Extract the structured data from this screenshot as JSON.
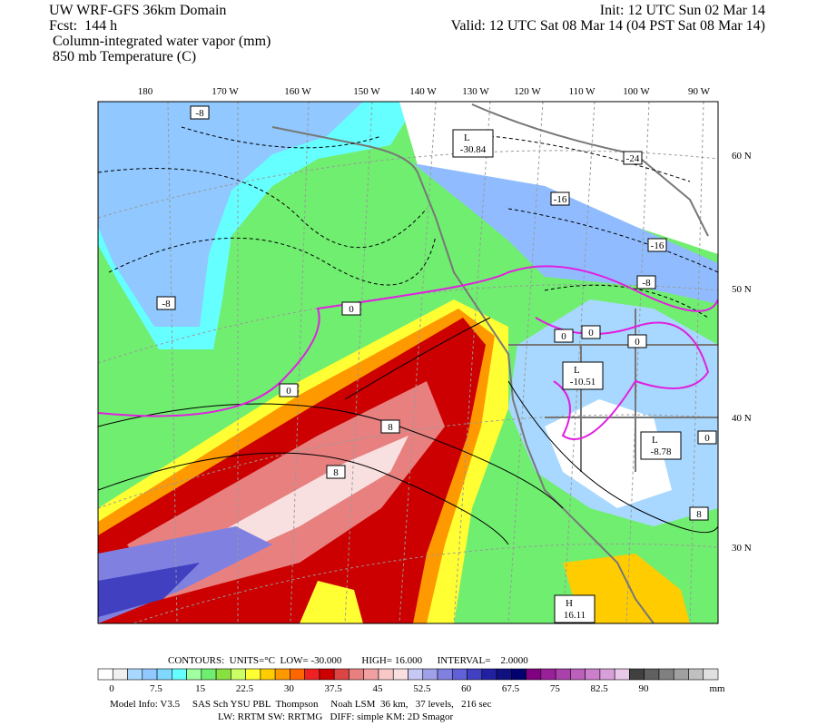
{
  "header": {
    "model": "UW WRF-GFS 36km Domain",
    "forecast": "Fcst:  144 h",
    "field1": "Column-integrated water vapor (mm)",
    "field2": "850 mb Temperature (C)",
    "init": "Init: 12 UTC Sun 02 Mar 14",
    "valid": "Valid: 12 UTC Sat 08 Mar 14 (04 PST Sat 08 Mar 14)"
  },
  "map": {
    "longitude_labels": [
      "180",
      "170 W",
      "160 W",
      "150 W",
      "140 W",
      "130 W",
      "120 W",
      "110 W",
      "100 W",
      "90 W"
    ],
    "latitude_labels": [
      "60 N",
      "50 N",
      "40 N",
      "30 N"
    ],
    "contour_labels": [
      "-8",
      "-24",
      "-16",
      "-16",
      "-8",
      "-8",
      "0",
      "0",
      "0",
      "0",
      "0",
      "0",
      "8",
      "8",
      "8"
    ],
    "centers": [
      {
        "symbol": "L",
        "value": "-30.84"
      },
      {
        "symbol": "L",
        "value": "-10.51"
      },
      {
        "symbol": "L",
        "value": "-8.78"
      },
      {
        "symbol": "H",
        "value": "16.11"
      }
    ]
  },
  "contours_note": "CONTOURS:  UNITS=°C  LOW= -30.000        HIGH= 16.000      INTERVAL=    2.0000",
  "colorbar": {
    "ticks": [
      0,
      7.5,
      15,
      22.5,
      30,
      37.5,
      45,
      52.5,
      60,
      67.5,
      75,
      82.5,
      90
    ],
    "unit": "mm",
    "step": 2.5,
    "colors": [
      "#ffffff",
      "#f0f0f0",
      "#a8d8ff",
      "#90c8ff",
      "#80d8ff",
      "#66ffff",
      "#a0ffa0",
      "#70ee70",
      "#88e040",
      "#ccff66",
      "#ffff33",
      "#ffcc00",
      "#ff9900",
      "#ff6600",
      "#ee2222",
      "#cc0000",
      "#dd4444",
      "#e88080",
      "#f0a0a0",
      "#f8c8c8",
      "#f8e0e0",
      "#c8c8f4",
      "#a0a0e8",
      "#8080e0",
      "#6060d8",
      "#4040c0",
      "#2020a0",
      "#101080",
      "#00006f",
      "#800080",
      "#9a209a",
      "#aa40aa",
      "#bb60bb",
      "#cc80cc",
      "#d8a0d8",
      "#e8c8e8",
      "#404040",
      "#606060",
      "#808080",
      "#a0a0a0",
      "#c0c0c0",
      "#e0e0e0"
    ]
  },
  "footer": {
    "line1": "Model Info: V3.5     SAS Sch YSU PBL  Thompson     Noah LSM  36 km,   37 levels,   216 sec",
    "line2": "LW: RRTM SW: RRTMG   DIFF: simple KM: 2D Smagor"
  }
}
